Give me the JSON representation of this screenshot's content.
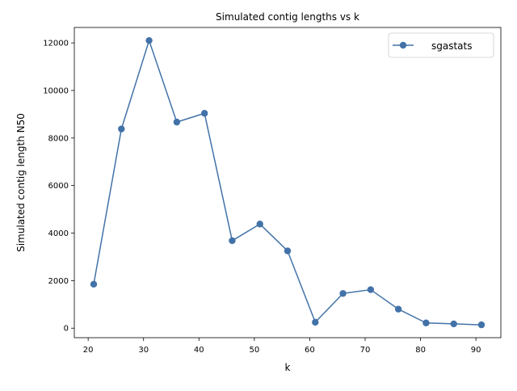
{
  "chart_data": {
    "type": "line",
    "title": "Simulated contig lengths vs k",
    "xlabel": "k",
    "ylabel": "Simulated contig length N50",
    "xlim": [
      17.5,
      94.5
    ],
    "ylim": [
      -400,
      12650
    ],
    "xticks": [
      20,
      30,
      40,
      50,
      60,
      70,
      80,
      90
    ],
    "yticks": [
      0,
      2000,
      4000,
      6000,
      8000,
      10000,
      12000
    ],
    "grid": false,
    "legend": "top-right",
    "series": [
      {
        "name": "sgastats",
        "color": "#4272a8",
        "marker": "circle",
        "x": [
          21,
          26,
          31,
          36,
          41,
          46,
          51,
          56,
          61,
          66,
          71,
          76,
          81,
          86,
          91
        ],
        "y": [
          1850,
          8380,
          12100,
          8670,
          9040,
          3680,
          4380,
          3250,
          250,
          1460,
          1620,
          800,
          220,
          180,
          140
        ]
      }
    ]
  }
}
